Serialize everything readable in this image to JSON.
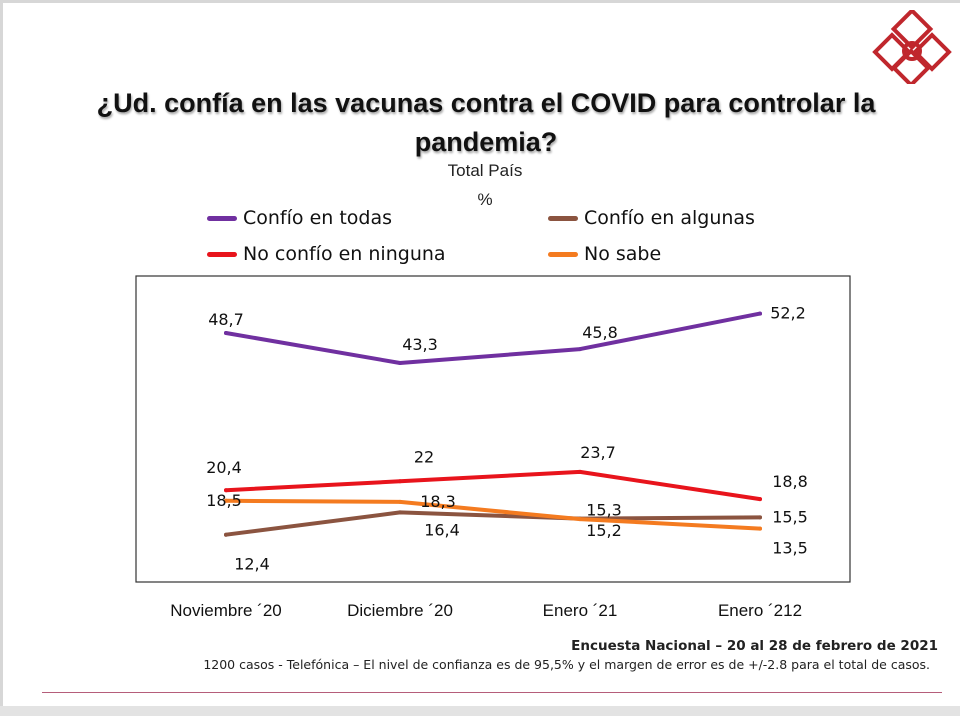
{
  "header": {
    "title": "¿Ud. confía en las vacunas contra el COVID para controlar la pandemia?",
    "subtitle": "Total País",
    "unit": "%"
  },
  "colors": {
    "accent": "#c0272d",
    "confio_todas": "#7030a0",
    "confio_algunas": "#8b5440",
    "no_confio": "#e8141c",
    "no_sabe": "#f47b20"
  },
  "chart_data": {
    "type": "line",
    "title": "¿Ud. confía en las vacunas contra el COVID para controlar la pandemia?",
    "subtitle": "Total País",
    "ylabel": "%",
    "categories": [
      "Noviembre ´20",
      "Diciembre ´20",
      "Enero ´21",
      "Enero ´212"
    ],
    "ylim": [
      10,
      55
    ],
    "grid": false,
    "legend_position": "top",
    "series": [
      {
        "name": "Confío en todas",
        "color": "#7030a0",
        "values": [
          48.7,
          43.3,
          45.8,
          52.2
        ],
        "labels": [
          "48,7",
          "43,3",
          "45,8",
          "52,2"
        ]
      },
      {
        "name": "Confío en algunas",
        "color": "#8b5440",
        "values": [
          12.4,
          16.4,
          15.3,
          15.5
        ],
        "labels": [
          "12,4",
          "16,4",
          "15,3",
          "15,5"
        ]
      },
      {
        "name": "No confío en ninguna",
        "color": "#e8141c",
        "values": [
          20.4,
          22,
          23.7,
          18.8
        ],
        "labels": [
          "20,4",
          "22",
          "23,7",
          "18,8"
        ]
      },
      {
        "name": "No sabe",
        "color": "#f47b20",
        "values": [
          18.5,
          18.3,
          15.2,
          13.5
        ],
        "labels": [
          "18,5",
          "18,3",
          "15,2",
          "13,5"
        ]
      }
    ]
  },
  "footer": {
    "source": "Encuesta Nacional – 20 al 28 de febrero de 2021",
    "note": "1200 casos - Telefónica  – El nivel de confianza es de 95,5% y el margen de error es de +/-2.8 para el total de casos."
  }
}
